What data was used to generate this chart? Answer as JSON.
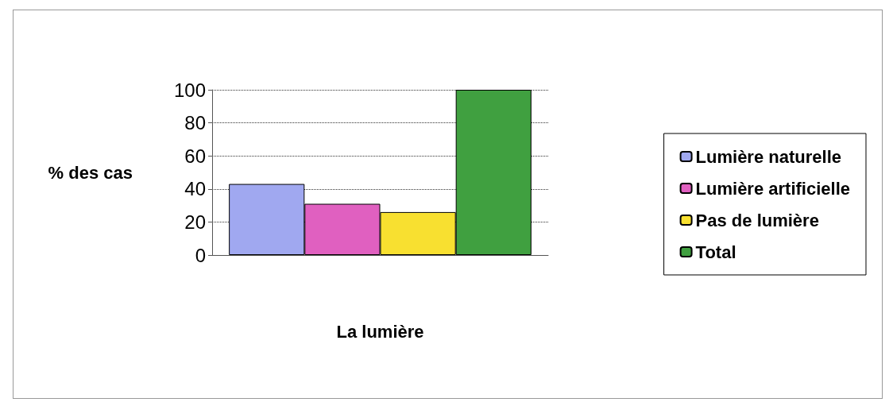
{
  "chart_data": {
    "type": "bar",
    "xlabel": "La lumière",
    "ylabel": "% des cas",
    "categories": [
      null
    ],
    "series": [
      {
        "name": "Lumière naturelle",
        "color": "#a0a8f0",
        "values": [
          43
        ]
      },
      {
        "name": "Lumière artificielle",
        "color": "#e060c0",
        "values": [
          31
        ]
      },
      {
        "name": "Pas de lumière",
        "color": "#f8e030",
        "values": [
          26
        ]
      },
      {
        "name": "Total",
        "color": "#40a040",
        "values": [
          100
        ]
      }
    ],
    "ylim": [
      0,
      100
    ],
    "yticks": [
      0,
      20,
      40,
      60,
      80,
      100
    ],
    "grid": "y",
    "legend": "right"
  }
}
